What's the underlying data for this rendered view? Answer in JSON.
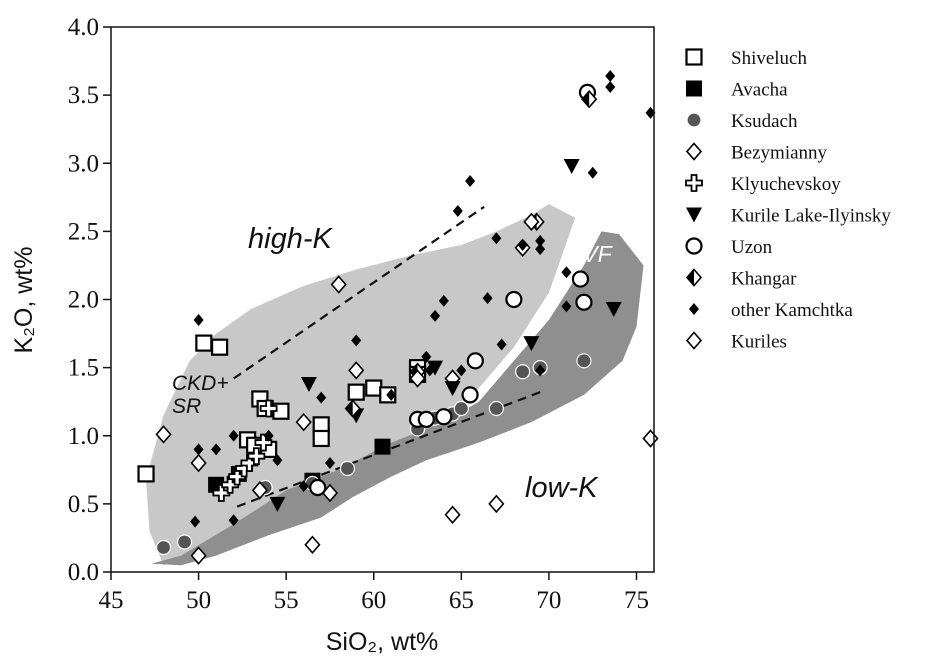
{
  "chart_data": {
    "type": "scatter",
    "xlabel": "SiO₂, wt%",
    "ylabel": "K₂O, wt%",
    "xlim": [
      45,
      76
    ],
    "ylim": [
      0,
      4
    ],
    "x_ticks": [
      "45",
      "50",
      "55",
      "60",
      "65",
      "70",
      "75"
    ],
    "y_ticks": [
      "0.0",
      "0.5",
      "1.0",
      "1.5",
      "2.0",
      "2.5",
      "3.0",
      "3.5",
      "4.0"
    ],
    "grid": false,
    "legend_position": "right",
    "region_labels": {
      "high_k": "high-K",
      "low_k": "low-K",
      "evf": "EVF",
      "ckd_line1": "CKD+",
      "ckd_line2": "SR"
    },
    "fields": [
      {
        "id": "light",
        "color": "#c8c8c8",
        "points": [
          [
            47.0,
            0.68
          ],
          [
            48.0,
            1.15
          ],
          [
            49.5,
            1.55
          ],
          [
            51,
            1.75
          ],
          [
            53,
            1.93
          ],
          [
            56,
            2.1
          ],
          [
            59,
            2.22
          ],
          [
            62,
            2.32
          ],
          [
            65,
            2.4
          ],
          [
            67,
            2.5
          ],
          [
            69,
            2.62
          ],
          [
            70,
            2.7
          ],
          [
            71.5,
            2.6
          ],
          [
            70,
            2.05
          ],
          [
            68,
            1.65
          ],
          [
            66,
            1.35
          ],
          [
            64,
            1.1
          ],
          [
            62,
            0.9
          ],
          [
            60,
            0.75
          ],
          [
            58,
            0.65
          ],
          [
            56,
            0.53
          ],
          [
            54,
            0.43
          ],
          [
            52,
            0.3
          ],
          [
            50,
            0.18
          ],
          [
            49,
            0.1
          ],
          [
            48,
            0.05
          ],
          [
            47.2,
            0.3
          ]
        ]
      },
      {
        "id": "dark",
        "color": "#8f8f8f",
        "points": [
          [
            47.3,
            0.06
          ],
          [
            49,
            0.12
          ],
          [
            52,
            0.35
          ],
          [
            55,
            0.6
          ],
          [
            58,
            0.75
          ],
          [
            61,
            0.95
          ],
          [
            64,
            1.1
          ],
          [
            66,
            1.25
          ],
          [
            68,
            1.55
          ],
          [
            70,
            1.85
          ],
          [
            72,
            2.25
          ],
          [
            73,
            2.5
          ],
          [
            74,
            2.48
          ],
          [
            75.4,
            2.25
          ],
          [
            75.0,
            1.8
          ],
          [
            74.2,
            1.55
          ],
          [
            72,
            1.3
          ],
          [
            69,
            1.1
          ],
          [
            66,
            0.95
          ],
          [
            63,
            0.82
          ],
          [
            61,
            0.7
          ],
          [
            58.8,
            0.55
          ],
          [
            57,
            0.4
          ],
          [
            54,
            0.27
          ],
          [
            51,
            0.12
          ],
          [
            49,
            0.05
          ]
        ]
      }
    ],
    "trend_lines": [
      {
        "from": [
          52.0,
          1.42
        ],
        "to": [
          66.3,
          2.68
        ]
      },
      {
        "from": [
          52.2,
          0.48
        ],
        "to": [
          69.5,
          1.32
        ]
      }
    ],
    "series": [
      {
        "name": "Shiveluch",
        "marker": "square-open",
        "points": [
          [
            47.0,
            0.72
          ],
          [
            50.3,
            1.68
          ],
          [
            51.2,
            1.65
          ],
          [
            52.8,
            0.97
          ],
          [
            53.2,
            0.93
          ],
          [
            53.5,
            1.27
          ],
          [
            53.8,
            1.2
          ],
          [
            54.0,
            0.9
          ],
          [
            54.7,
            1.18
          ],
          [
            57.0,
            1.08
          ],
          [
            57.0,
            0.98
          ],
          [
            59.0,
            1.32
          ],
          [
            60.0,
            1.35
          ],
          [
            60.8,
            1.3
          ],
          [
            62.5,
            1.5
          ],
          [
            62.5,
            1.45
          ]
        ]
      },
      {
        "name": "Avacha",
        "marker": "square-filled",
        "points": [
          [
            51.0,
            0.64
          ],
          [
            52.3,
            0.72
          ],
          [
            56.5,
            0.67
          ],
          [
            60.5,
            0.92
          ]
        ]
      },
      {
        "name": "Ksudach",
        "marker": "circle-gray",
        "points": [
          [
            48.0,
            0.18
          ],
          [
            49.2,
            0.22
          ],
          [
            53.8,
            0.62
          ],
          [
            56.5,
            0.65
          ],
          [
            58.5,
            0.76
          ],
          [
            62.5,
            1.05
          ],
          [
            63.5,
            1.13
          ],
          [
            64.5,
            1.16
          ],
          [
            65.0,
            1.2
          ],
          [
            67.0,
            1.2
          ],
          [
            68.5,
            1.47
          ],
          [
            69.5,
            1.5
          ],
          [
            72.0,
            1.55
          ]
        ]
      },
      {
        "name": "Bezymianny",
        "marker": "diamond-open",
        "points": [
          [
            50.0,
            0.8
          ],
          [
            56.0,
            1.1
          ],
          [
            57.5,
            0.58
          ],
          [
            59.0,
            1.48
          ],
          [
            64.5,
            1.42
          ],
          [
            68.5,
            2.38
          ]
        ]
      },
      {
        "name": "Klyuchevskoy",
        "marker": "cross-open",
        "points": [
          [
            51.3,
            0.58
          ],
          [
            51.8,
            0.64
          ],
          [
            52.2,
            0.7
          ],
          [
            52.6,
            0.76
          ],
          [
            52.9,
            0.8
          ],
          [
            53.3,
            0.85
          ],
          [
            53.7,
            0.95
          ],
          [
            54.0,
            1.2
          ]
        ]
      },
      {
        "name": "Kurile Lake-Ilyinsky",
        "marker": "triangle-down",
        "points": [
          [
            54.5,
            0.5
          ],
          [
            56.3,
            1.38
          ],
          [
            59.0,
            1.15
          ],
          [
            63.5,
            1.5
          ],
          [
            64.5,
            1.35
          ],
          [
            69.0,
            1.68
          ],
          [
            71.3,
            2.98
          ],
          [
            73.7,
            1.93
          ]
        ]
      },
      {
        "name": "Uzon",
        "marker": "circle-open",
        "points": [
          [
            56.8,
            0.62
          ],
          [
            62.5,
            1.12
          ],
          [
            63.0,
            1.12
          ],
          [
            64.0,
            1.14
          ],
          [
            65.5,
            1.3
          ],
          [
            65.8,
            1.55
          ],
          [
            68.0,
            2.0
          ],
          [
            71.8,
            2.15
          ],
          [
            72.0,
            1.98
          ],
          [
            72.2,
            3.52
          ]
        ]
      },
      {
        "name": "Khangar",
        "marker": "diamond-half",
        "points": [
          [
            58.8,
            1.2
          ],
          [
            62.5,
            1.47
          ],
          [
            69.3,
            2.57
          ],
          [
            72.3,
            3.47
          ]
        ]
      },
      {
        "name": "other Kamchtka",
        "marker": "diamond-filled",
        "points": [
          [
            50.0,
            1.85
          ],
          [
            50.0,
            0.9
          ],
          [
            51.0,
            0.9
          ],
          [
            52.0,
            1.0
          ],
          [
            54.0,
            1.0
          ],
          [
            52.0,
            0.38
          ],
          [
            49.8,
            0.37
          ],
          [
            54.5,
            0.82
          ],
          [
            56.0,
            0.63
          ],
          [
            57.0,
            1.28
          ],
          [
            57.5,
            0.8
          ],
          [
            59.0,
            1.7
          ],
          [
            61.0,
            1.3
          ],
          [
            63.0,
            1.58
          ],
          [
            63.2,
            1.48
          ],
          [
            63.5,
            1.88
          ],
          [
            64.0,
            1.99
          ],
          [
            64.8,
            2.65
          ],
          [
            65.5,
            2.87
          ],
          [
            65.0,
            1.48
          ],
          [
            66.5,
            2.01
          ],
          [
            67.0,
            2.45
          ],
          [
            68.5,
            2.4
          ],
          [
            69.5,
            2.43
          ],
          [
            69.5,
            2.37
          ],
          [
            71.0,
            2.2
          ],
          [
            71.0,
            1.95
          ],
          [
            72.5,
            2.93
          ],
          [
            73.5,
            3.56
          ],
          [
            73.5,
            3.64
          ],
          [
            75.8,
            3.37
          ],
          [
            67.3,
            1.67
          ],
          [
            69.5,
            1.48
          ]
        ]
      },
      {
        "name": "Kuriles",
        "marker": "diamond-open",
        "points": [
          [
            48.0,
            1.01
          ],
          [
            50.0,
            0.12
          ],
          [
            56.5,
            0.2
          ],
          [
            58.0,
            2.11
          ],
          [
            64.5,
            0.42
          ],
          [
            67.0,
            0.5
          ],
          [
            69.0,
            2.57
          ],
          [
            75.8,
            0.98
          ],
          [
            62.5,
            1.42
          ],
          [
            53.5,
            0.6
          ]
        ]
      }
    ]
  }
}
